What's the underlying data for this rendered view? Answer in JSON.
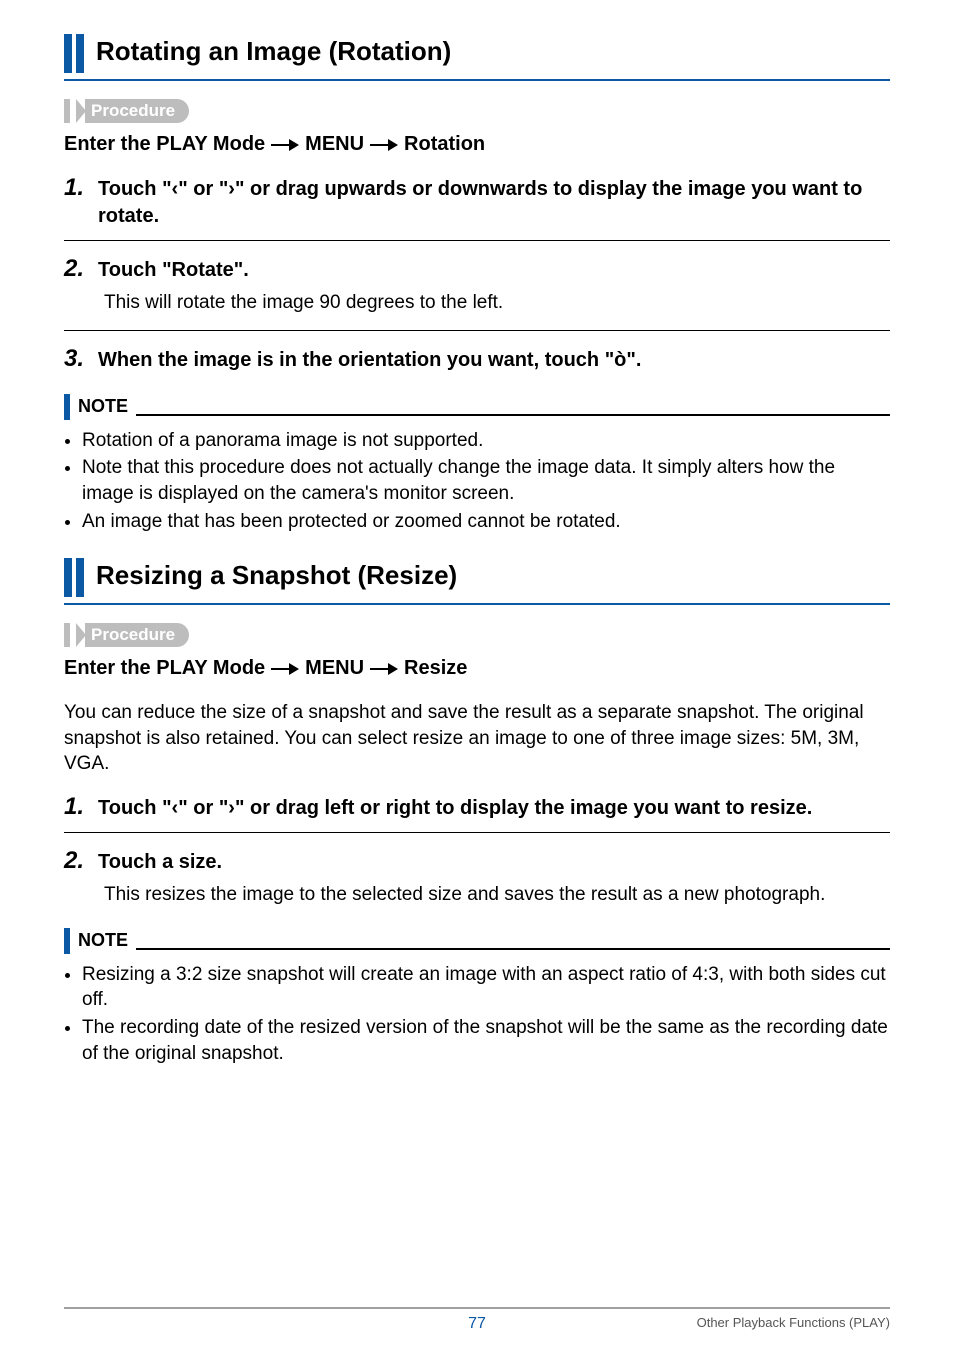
{
  "colors": {
    "accent": "#0b58a5",
    "pill_bg": "#bdbdbd",
    "text": "#000000",
    "footer_line": "#a0a0a0",
    "footer_right_text": "#555555"
  },
  "typography": {
    "body_fontsize_pt": 14,
    "heading_fontsize_pt": 20,
    "step_number_fontsize_pt": 18,
    "note_label_fontsize_pt": 13
  },
  "section1": {
    "title": "Rotating an Image (Rotation)",
    "procedure_label": "Procedure",
    "enter_parts": [
      "Enter the PLAY Mode",
      "MENU",
      "Rotation"
    ],
    "steps": [
      {
        "num": "1.",
        "title_parts": [
          "Touch \"",
          "‹",
          "\" or \"",
          "›",
          "\" or drag upwards or downwards to display the image you want to rotate."
        ]
      },
      {
        "num": "2.",
        "title": "Touch \"Rotate\".",
        "body": "This will rotate the image 90 degrees to the left."
      },
      {
        "num": "3.",
        "title_parts": [
          "When the image is in the orientation you want, touch \"",
          "ò",
          "\"."
        ]
      }
    ],
    "note_label": "NOTE",
    "notes": [
      "Rotation of a panorama image is not supported.",
      "Note that this procedure does not actually change the image data. It simply alters how the image is displayed on the camera's monitor screen.",
      "An image that has been protected or zoomed cannot be rotated."
    ]
  },
  "section2": {
    "title": "Resizing a Snapshot (Resize)",
    "procedure_label": "Procedure",
    "enter_parts": [
      "Enter the PLAY Mode",
      "MENU",
      "Resize"
    ],
    "intro": "You can reduce the size of a snapshot and save the result as a separate snapshot. The original snapshot is also retained. You can select resize an image to one of three image sizes: 5M, 3M, VGA.",
    "steps": [
      {
        "num": "1.",
        "title_parts": [
          "Touch \"",
          "‹",
          "\" or \"",
          "›",
          "\" or drag left or right to display the image you want to resize."
        ]
      },
      {
        "num": "2.",
        "title": "Touch a size.",
        "body": "This resizes the image to the selected size and saves the result as a new photograph."
      }
    ],
    "note_label": "NOTE",
    "notes": [
      "Resizing a 3:2 size snapshot will create an image with an aspect ratio of 4:3, with both sides cut off.",
      "The recording date of the resized version of the snapshot will be the same as the recording date of the original snapshot."
    ]
  },
  "footer": {
    "page_number": "77",
    "right_text": "Other Playback Functions (PLAY)"
  }
}
